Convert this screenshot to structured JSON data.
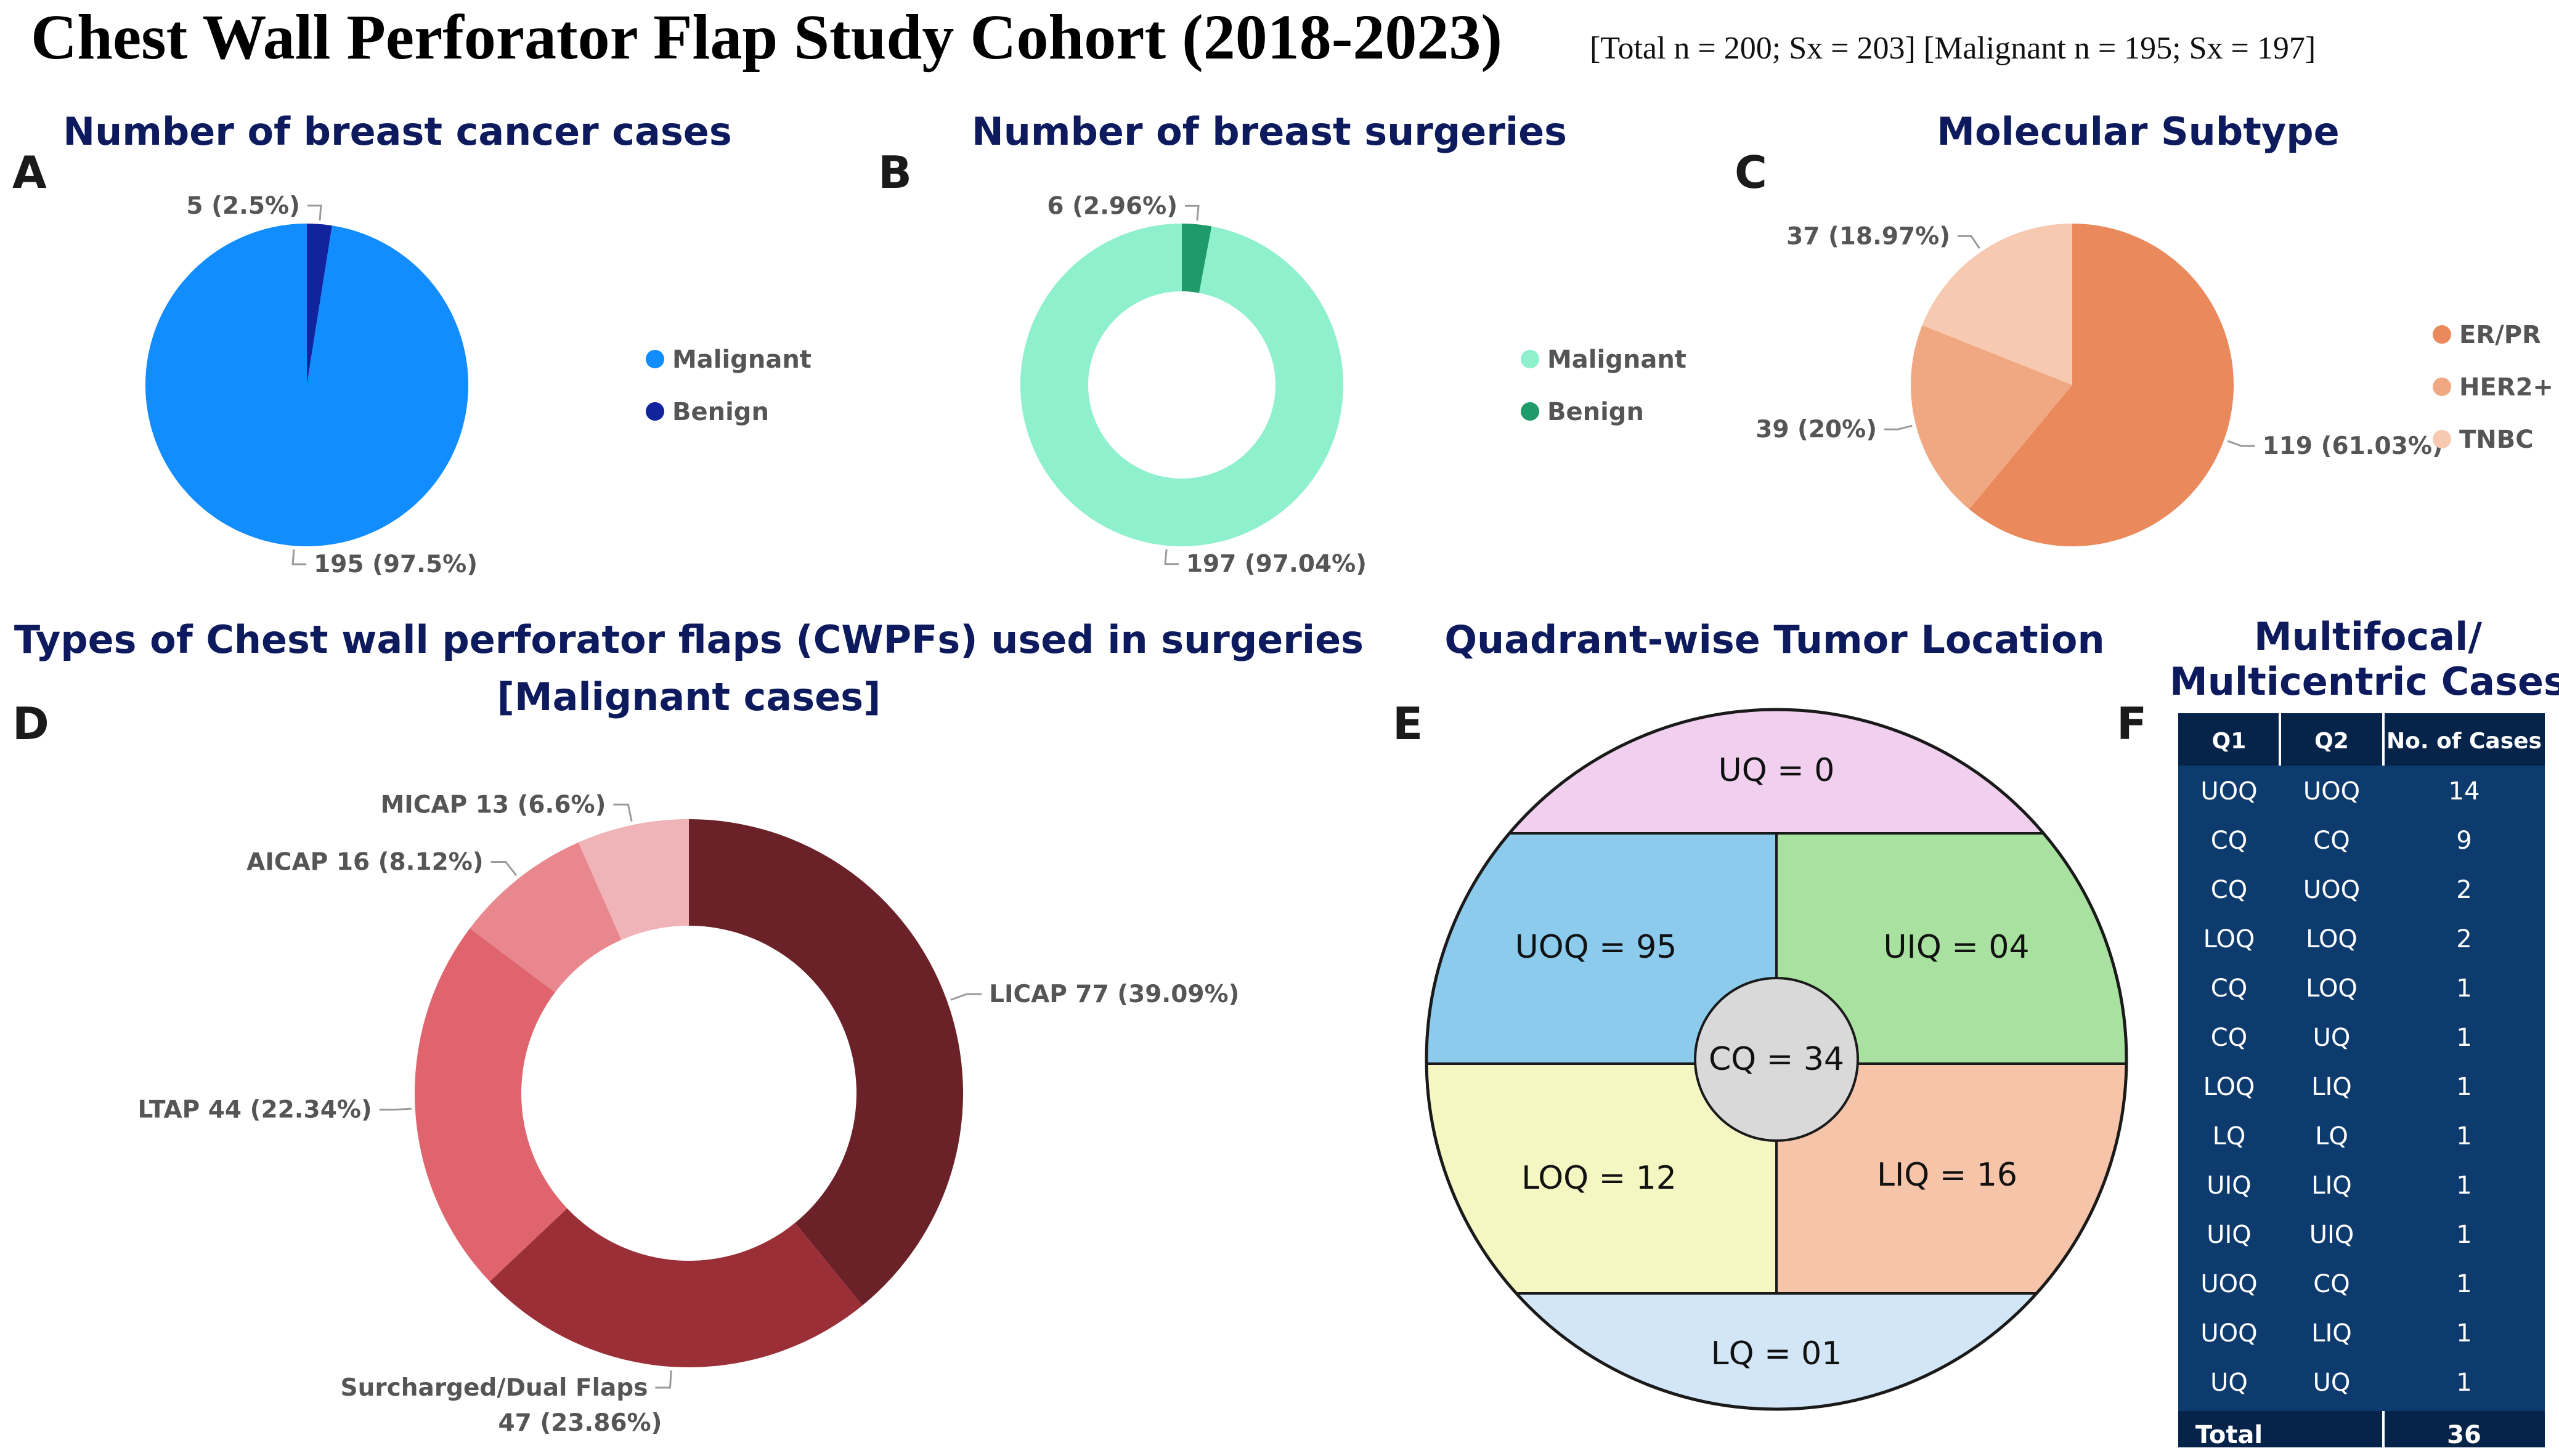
{
  "figure": {
    "title": "Chest Wall Perforator Flap Study Cohort (2018-2023)",
    "subtitle": "[Total n = 200; Sx = 203] [Malignant n = 195; Sx = 197]"
  },
  "colors": {
    "title_navy": "#0d1b5e",
    "table_bg": "#0d3b6e",
    "table_head_bg": "#06234a"
  },
  "chart_data": [
    {
      "panel": "A",
      "type": "pie",
      "title": "Number of breast cancer cases",
      "categories": [
        "Malignant",
        "Benign"
      ],
      "values": [
        195,
        5
      ],
      "labels": [
        "195 (97.5%)",
        "5 (2.5%)"
      ],
      "colors": [
        "#118dff",
        "#12239e"
      ],
      "legend": "right"
    },
    {
      "panel": "B",
      "type": "pie",
      "subtype": "donut",
      "title": "Number of breast surgeries",
      "categories": [
        "Malignant",
        "Benign"
      ],
      "values": [
        197,
        6
      ],
      "labels": [
        "197 (97.04%)",
        "6 (2.96%)"
      ],
      "colors": [
        "#8ff0cd",
        "#1f9a6a"
      ],
      "legend": "right"
    },
    {
      "panel": "C",
      "type": "pie",
      "title": "Molecular Subtype",
      "categories": [
        "ER/PR",
        "HER2+",
        "TNBC"
      ],
      "values": [
        119,
        39,
        37
      ],
      "labels": [
        "119 (61.03%)",
        "39 (20%)",
        "37 (18.97%)"
      ],
      "colors": [
        "#ea8a5c",
        "#f0a882",
        "#f6c9b0"
      ],
      "legend": "right"
    },
    {
      "panel": "D",
      "type": "pie",
      "subtype": "donut",
      "title": "Types of Chest wall perforator flaps (CWPFs) used in surgeries",
      "title_line2": "[Malignant cases]",
      "categories": [
        "LICAP",
        "Surcharged/Dual Flaps",
        "LTAP",
        "AICAP",
        "MICAP"
      ],
      "values": [
        77,
        47,
        44,
        16,
        13
      ],
      "labels": [
        "LICAP 77 (39.09%)",
        "Surcharged/Dual Flaps",
        "LTAP 44 (22.34%)",
        "AICAP 16 (8.12%)",
        "MICAP 13 (6.6%)"
      ],
      "label_line2": "47 (23.86%)",
      "colors": [
        "#6b2128",
        "#9b2f38",
        "#e0646e",
        "#e9878e",
        "#f0b3b8"
      ]
    },
    {
      "panel": "E",
      "type": "diagram",
      "title": "Quadrant-wise Tumor Location",
      "regions": [
        {
          "key": "UQ",
          "label": "UQ = 0",
          "value": 0,
          "color": "#f0d0ee"
        },
        {
          "key": "UOQ",
          "label": "UOQ = 95",
          "value": 95,
          "color": "#8ccbec"
        },
        {
          "key": "UIQ",
          "label": "UIQ = 04",
          "value": 4,
          "color": "#a9e2a0"
        },
        {
          "key": "CQ",
          "label": "CQ = 34",
          "value": 34,
          "color": "#d9d9d9"
        },
        {
          "key": "LOQ",
          "label": "LOQ = 12",
          "value": 12,
          "color": "#f5f7c2"
        },
        {
          "key": "LIQ",
          "label": "LIQ = 16",
          "value": 16,
          "color": "#f6c4a8"
        },
        {
          "key": "LQ",
          "label": "LQ = 01",
          "value": 1,
          "color": "#d3e6f7"
        }
      ]
    },
    {
      "panel": "F",
      "type": "table",
      "title_line1": "Multifocal/",
      "title_line2": "Multicentric Cases",
      "columns": [
        "Q1",
        "Q2",
        "No. of Cases"
      ],
      "rows": [
        [
          "UOQ",
          "UOQ",
          "14"
        ],
        [
          "CQ",
          "CQ",
          "9"
        ],
        [
          "CQ",
          "UOQ",
          "2"
        ],
        [
          "LOQ",
          "LOQ",
          "2"
        ],
        [
          "CQ",
          "LOQ",
          "1"
        ],
        [
          "CQ",
          "UQ",
          "1"
        ],
        [
          "LOQ",
          "LIQ",
          "1"
        ],
        [
          "LQ",
          "LQ",
          "1"
        ],
        [
          "UIQ",
          "LIQ",
          "1"
        ],
        [
          "UIQ",
          "UIQ",
          "1"
        ],
        [
          "UOQ",
          "CQ",
          "1"
        ],
        [
          "UOQ",
          "LIQ",
          "1"
        ],
        [
          "UQ",
          "UQ",
          "1"
        ]
      ],
      "total_label": "Total",
      "total_value": "36"
    }
  ]
}
